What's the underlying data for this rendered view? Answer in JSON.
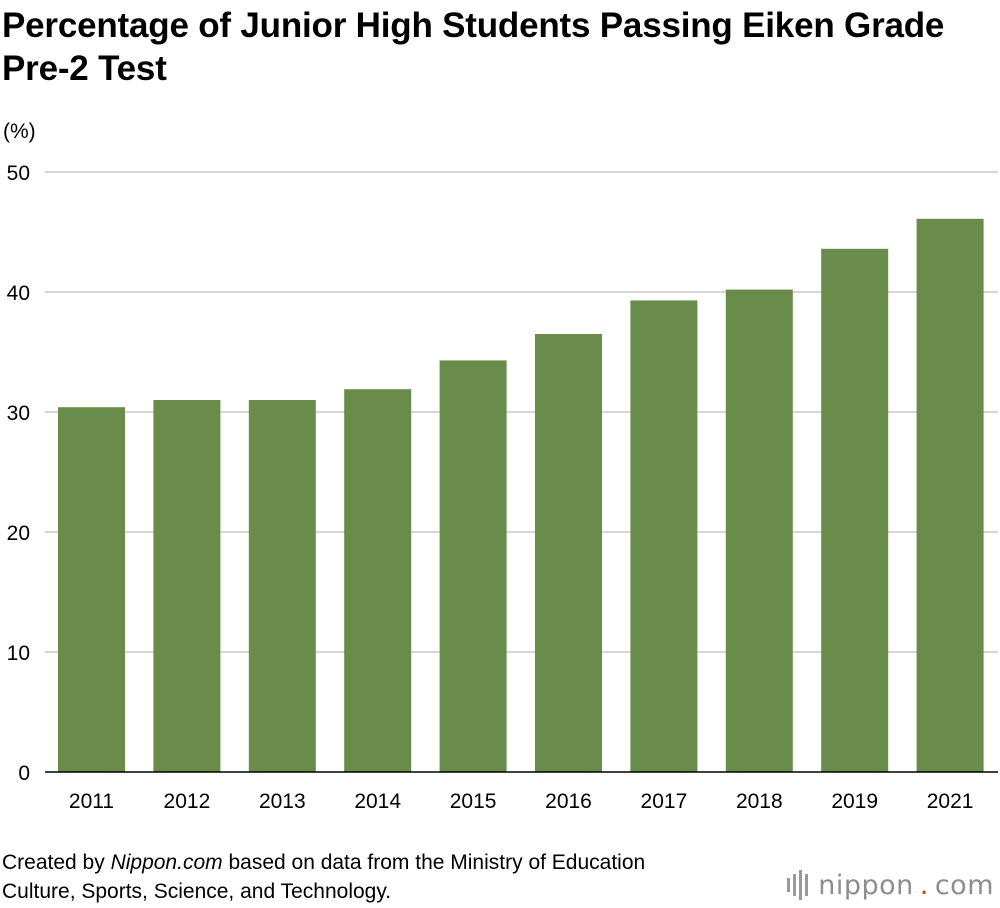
{
  "chart_data": {
    "type": "bar",
    "title": "Percentage of Junior High Students Passing Eiken Grade Pre-2 Test",
    "ylabel": "(%)",
    "xlabel": "",
    "categories": [
      "2011",
      "2012",
      "2013",
      "2014",
      "2015",
      "2016",
      "2017",
      "2018",
      "2019",
      "2021"
    ],
    "values": [
      30.4,
      31.0,
      31.0,
      31.9,
      34.3,
      36.5,
      39.3,
      40.2,
      43.6,
      46.1
    ],
    "ylim": [
      0,
      50
    ],
    "yticks": [
      "0",
      "10",
      "20",
      "30",
      "40",
      "50"
    ],
    "grid": true,
    "legend": "none",
    "bar_color": "#6a8c4a"
  },
  "source": {
    "prefix": "Created by ",
    "site": "Nippon.com",
    "rest": " based on data from the Ministry of Education Culture, Sports, Science, and Technology."
  },
  "brand": {
    "name": "nippon",
    "dot": ".",
    "tld": "com"
  }
}
